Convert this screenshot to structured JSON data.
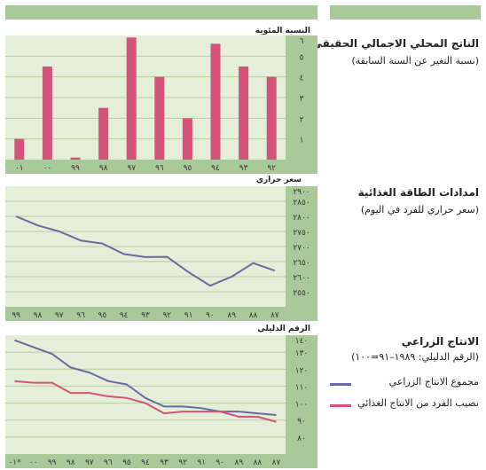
{
  "colors": {
    "panel": "#e4eed9",
    "axis": "#a9c99a",
    "grid": "#b4cf9e",
    "bar": "#d4537a",
    "line_total": "#6a6aa2",
    "line_percap": "#d4537a"
  },
  "gdp": {
    "title": "الناتج المحلي الاجمالي الحقيقي",
    "subtitle": "(نسبة التغير عن السنة السابقة)",
    "unit": "النسبة المئوية"
  },
  "energy": {
    "title": "امدادات الطاقة الغذائية",
    "subtitle": "(سعر حراري للفرد في اليوم)",
    "unit": "سعر حراري"
  },
  "agri": {
    "title": "الانتاج الزراعي",
    "subtitle": "(الرقم الدليلي: ١٩٨٩–٩١=١٠٠)",
    "unit": "الرقم الدليلي",
    "legend": [
      {
        "label": "مجموع الانتاج الزراعي",
        "color": "#6a6aa2"
      },
      {
        "label": "نصيب الفرد من الانتاج الغذائي",
        "color": "#d4537a"
      }
    ]
  },
  "chart_data": [
    {
      "type": "bar",
      "categories": [
        "٠١",
        "٠٠",
        "٩٩",
        "٩٨",
        "٩٧",
        "٩٦",
        "٩٥",
        "٩٤",
        "٩٣",
        "٩٢"
      ],
      "values": [
        1.0,
        4.5,
        0.1,
        2.5,
        5.9,
        4.0,
        2.0,
        5.6,
        4.5,
        4.0
      ],
      "ylim": [
        0,
        6
      ],
      "yticks": [
        0,
        1,
        2,
        3,
        4,
        5,
        6
      ],
      "ytick_labels": [
        "",
        "١",
        "٢",
        "٣",
        "٤",
        "٥",
        "٦"
      ],
      "grid": true
    },
    {
      "type": "line",
      "categories": [
        "٩٩",
        "٩٨",
        "٩٧",
        "٩٦",
        "٩٥",
        "٩٤",
        "٩٣",
        "٩٢",
        "٩١",
        "٩٠",
        "٨٩",
        "٨٨",
        "٨٧"
      ],
      "series": [
        {
          "values": [
            2800,
            2770,
            2750,
            2720,
            2710,
            2675,
            2665,
            2666,
            2615,
            2570,
            2600,
            2645,
            2620
          ]
        }
      ],
      "ylim": [
        2500,
        2900
      ],
      "yticks": [
        2500,
        2550,
        2600,
        2650,
        2700,
        2750,
        2800,
        2850,
        2900
      ],
      "ytick_labels": [
        "",
        "٢٥٥٠",
        "٢٦٠٠",
        "٢٦٥٠",
        "٢٧٠٠",
        "٢٧٥٠",
        "٢٨٠٠",
        "٢٨٥٠",
        "٢٩٠٠"
      ],
      "grid": true
    },
    {
      "type": "line",
      "categories": [
        "٠١*",
        "٠٠",
        "٩٩",
        "٩٨",
        "٩٧",
        "٩٦",
        "٩٥",
        "٩٤",
        "٩٣",
        "٩٢",
        "٩١",
        "٩٠",
        "٨٩",
        "٨٨",
        "٨٧"
      ],
      "series": [
        {
          "name": "مجموع الانتاج الزراعي",
          "values": [
            137,
            133,
            129,
            121,
            118,
            113,
            111,
            103,
            98,
            98,
            97,
            95,
            95,
            94,
            93
          ]
        },
        {
          "name": "نصيب الفرد من الانتاج الغذائي",
          "values": [
            113,
            112,
            112,
            106,
            106,
            104,
            103,
            100,
            94,
            95,
            95,
            95,
            92,
            92,
            89
          ]
        }
      ],
      "ylim": [
        70,
        140
      ],
      "yticks": [
        70,
        80,
        90,
        100,
        110,
        120,
        130,
        140
      ],
      "ytick_labels": [
        "",
        "٨٠",
        "٩٠",
        "١٠٠",
        "١١٠",
        "١٢٠",
        "١٣٠",
        "١٤٠"
      ],
      "grid": true
    }
  ]
}
